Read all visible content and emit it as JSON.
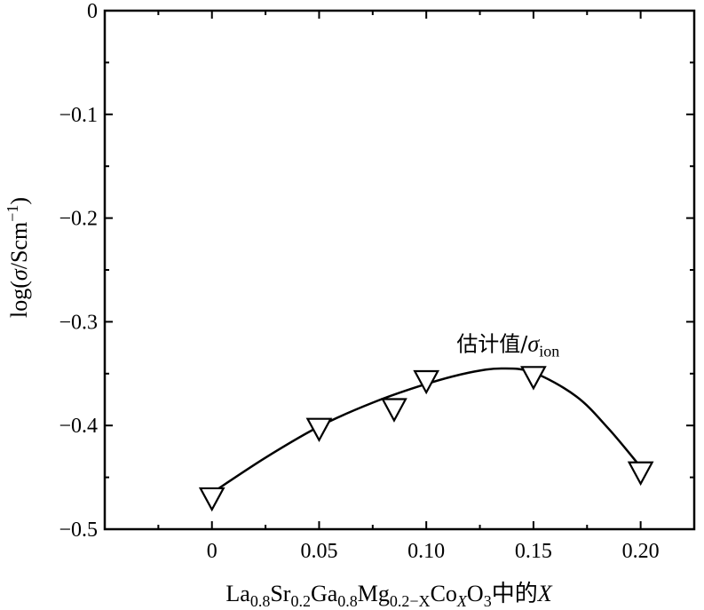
{
  "chart_data": {
    "type": "scatter",
    "xlabel": {
      "main": "La",
      "sub1": "0.8",
      "t2": "Sr",
      "sub2": "0.2",
      "t3": "Ga",
      "sub3": "0.8",
      "t4": "Mg",
      "sub4": "0.2−X",
      "t5": "Co",
      "sub5": "X",
      "t6": "O",
      "sub6": "3",
      "t7": "中的",
      "t8": "X"
    },
    "ylabel": {
      "pre": "log(",
      "sigma": "σ",
      "mid": "/Scm",
      "sup": "−1",
      "post": ")"
    },
    "xlim": [
      -0.05,
      0.225
    ],
    "ylim": [
      -0.5,
      0
    ],
    "xticks": [
      0,
      0.05,
      0.1,
      0.15,
      0.2
    ],
    "xtick_labels": [
      "0",
      "0.05",
      "0.10",
      "0.15",
      "0.20"
    ],
    "yticks": [
      0,
      -0.1,
      -0.2,
      -0.3,
      -0.4,
      -0.5
    ],
    "ytick_labels": [
      "0",
      "−0.1",
      "−0.2",
      "−0.3",
      "−0.4",
      "−0.5"
    ],
    "grid": false,
    "series": [
      {
        "marker": "down-triangle-open",
        "x": [
          0,
          0.05,
          0.085,
          0.1,
          0.15,
          0.2
        ],
        "y": [
          -0.47,
          -0.403,
          -0.384,
          -0.357,
          -0.353,
          -0.445
        ]
      }
    ],
    "fit_curve": {
      "x": [
        0,
        0.025,
        0.05,
        0.075,
        0.1,
        0.12,
        0.135,
        0.15,
        0.17,
        0.185,
        0.2
      ],
      "y": [
        -0.465,
        -0.431,
        -0.401,
        -0.378,
        -0.36,
        -0.349,
        -0.345,
        -0.349,
        -0.372,
        -0.403,
        -0.44
      ]
    },
    "annotation": {
      "text": "估计值/",
      "sigma": "σ",
      "sub": "ion",
      "x": 0.11,
      "y": -0.33
    }
  }
}
